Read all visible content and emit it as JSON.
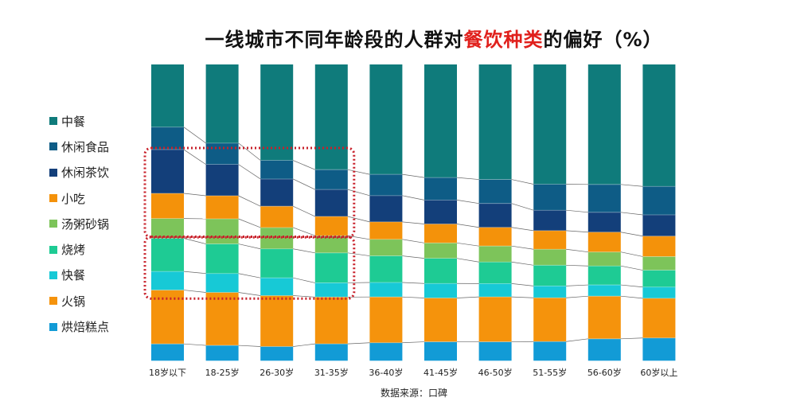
{
  "chart_data": {
    "type": "bar",
    "stacked": true,
    "percent_stacked": true,
    "title": {
      "prefix": "一线城市不同年龄段的人群对",
      "highlight": "餐饮种类",
      "suffix": "的偏好（%）",
      "highlight_color": "#e0201c"
    },
    "source": "数据来源：口碑",
    "categories": [
      "18岁以下",
      "18-25岁",
      "26-30岁",
      "31-35岁",
      "36-40岁",
      "41-45岁",
      "46-50岁",
      "51-55岁",
      "56-60岁",
      "60岁以上"
    ],
    "series": [
      {
        "name": "中餐",
        "color": "#0f7b7b",
        "values": [
          21.2,
          26.6,
          32.4,
          35.5,
          37.2,
          38.2,
          38.9,
          40.5,
          40.5,
          41.2
        ]
      },
      {
        "name": "休闲食品",
        "color": "#0e5c86",
        "values": [
          7.6,
          7.2,
          6.3,
          6.7,
          7.2,
          7.6,
          8.1,
          8.8,
          9.4,
          9.6
        ]
      },
      {
        "name": "休闲茶饮",
        "color": "#133f7a",
        "values": [
          14.8,
          10.6,
          9.2,
          9.1,
          8.9,
          8.1,
          8.1,
          6.9,
          6.7,
          7.2
        ]
      },
      {
        "name": "小吃",
        "color": "#f4920a",
        "values": [
          8.5,
          7.8,
          7.2,
          6.5,
          5.9,
          6.4,
          6.3,
          6.3,
          6.7,
          6.9
        ]
      },
      {
        "name": "汤粥砂锅",
        "color": "#7dc45a",
        "values": [
          6.7,
          8.5,
          7.2,
          5.8,
          5.6,
          5.2,
          5.4,
          5.4,
          4.7,
          4.6
        ]
      },
      {
        "name": "烧烤",
        "color": "#1ecb94",
        "values": [
          11.2,
          10.0,
          9.8,
          10.1,
          9.0,
          8.5,
          7.3,
          7.0,
          6.4,
          5.7
        ]
      },
      {
        "name": "快餐",
        "color": "#17c9d6",
        "values": [
          6.3,
          6.4,
          6.0,
          4.8,
          4.9,
          4.9,
          4.5,
          4.0,
          3.8,
          3.8
        ]
      },
      {
        "name": "火锅",
        "color": "#f5930c",
        "values": [
          18.2,
          17.9,
          17.2,
          15.8,
          15.5,
          14.8,
          15.2,
          14.8,
          14.4,
          13.4
        ]
      },
      {
        "name": "烘焙糕点",
        "color": "#129bd6",
        "values": [
          5.6,
          5.1,
          4.7,
          5.6,
          6.0,
          6.3,
          6.3,
          6.4,
          7.3,
          7.6
        ]
      }
    ],
    "legend_position": "left",
    "grid": false,
    "highlight_boxes": [
      {
        "series": [
          "休闲茶饮",
          "小吃"
        ],
        "categories": [
          "18岁以下",
          "18-25岁",
          "26-30岁",
          "31-35岁"
        ],
        "color": "#c8202a"
      },
      {
        "series": [
          "烧烤",
          "快餐"
        ],
        "categories": [
          "18岁以下",
          "18-25岁",
          "26-30岁",
          "31-35岁"
        ],
        "color": "#c8202a"
      }
    ]
  }
}
